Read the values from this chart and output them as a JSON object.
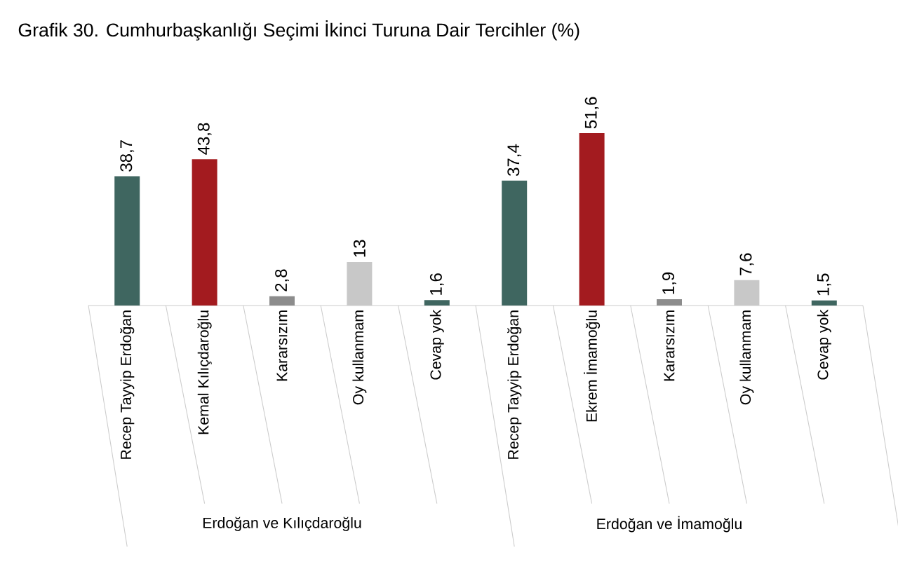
{
  "chart_data": {
    "type": "bar",
    "title": "Grafik 30. Cumhurbaşkanlığı Seçimi İkinci Turuna Dair Tercihler (%)",
    "categories": [
      "Recep Tayyip Erdoğan",
      "Kemal Kılıçdaroğlu",
      "Kararsızım",
      "Oy kullanmam",
      "Cevap yok",
      "Recep Tayyip Erdoğan",
      "Ekrem İmamoğlu",
      "Kararsızım",
      "Oy kullanmam",
      "Cevap yok"
    ],
    "values": [
      38.7,
      43.8,
      2.8,
      13,
      1.6,
      37.4,
      51.6,
      1.9,
      7.6,
      1.5
    ],
    "value_labels": [
      "38,7",
      "43,8",
      "2,8",
      "13",
      "1,6",
      "37,4",
      "51,6",
      "1,9",
      "7,6",
      "1,5"
    ],
    "colors": [
      "#3f6660",
      "#a31b1f",
      "#8c8c8c",
      "#c8c8c8",
      "#3f6660",
      "#3f6660",
      "#a31b1f",
      "#8c8c8c",
      "#c8c8c8",
      "#3f6660"
    ],
    "annotations": [
      "Erdoğan ve Kılıçdaroğlu",
      "Erdoğan ve İmamoğlu"
    ]
  }
}
